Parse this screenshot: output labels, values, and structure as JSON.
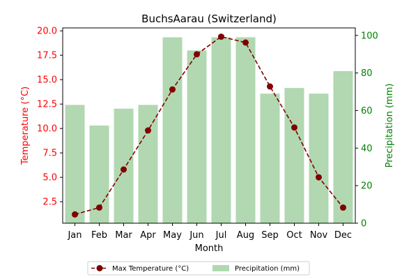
{
  "chart_data": {
    "type": "bar+line",
    "title": "BuchsAarau (Switzerland)",
    "xlabel": "Month",
    "ylabel_left": "Temperature (°C)",
    "ylabel_right": "Precipitation (mm)",
    "categories": [
      "Jan",
      "Feb",
      "Mar",
      "Apr",
      "May",
      "Jun",
      "Jul",
      "Aug",
      "Sep",
      "Oct",
      "Nov",
      "Dec"
    ],
    "series": [
      {
        "name": "Max Temperature (°C)",
        "type": "line",
        "axis": "left",
        "color": "#800000",
        "values": [
          1.2,
          1.9,
          5.8,
          9.8,
          14.0,
          17.6,
          19.4,
          18.8,
          14.3,
          10.1,
          5.0,
          1.9
        ]
      },
      {
        "name": "Precipitation (mm)",
        "type": "bar",
        "axis": "right",
        "color": "#b1d8b1",
        "values": [
          63,
          52,
          61,
          63,
          99,
          92,
          99,
          99,
          69,
          72,
          69,
          81
        ]
      }
    ],
    "ylim_left": [
      0.3,
      20.3
    ],
    "ylim_right": [
      0,
      104
    ],
    "yticks_left": [
      "2.5",
      "5.0",
      "7.5",
      "10.0",
      "12.5",
      "15.0",
      "17.5",
      "20.0"
    ],
    "yticks_right": [
      "0",
      "20",
      "40",
      "60",
      "80",
      "100"
    ],
    "left_axis_color": "#ff0000",
    "right_axis_color": "#008000",
    "grid": false,
    "legend_position": "bottom-center"
  }
}
